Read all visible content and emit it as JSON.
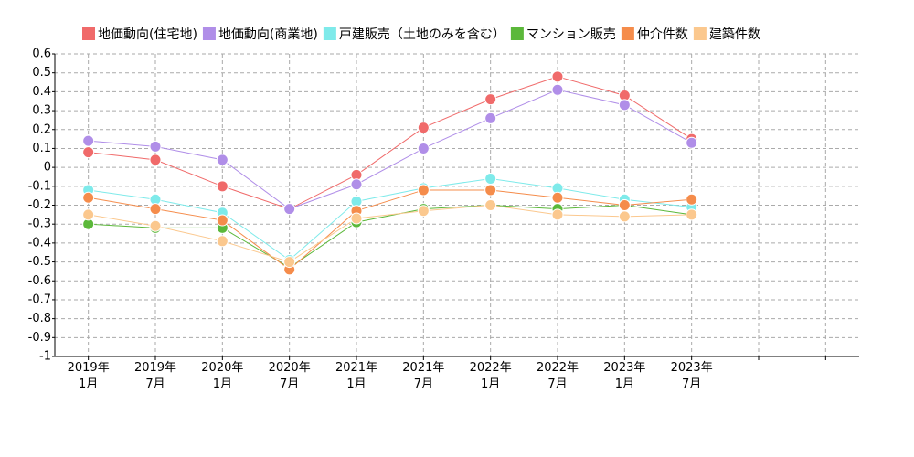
{
  "chart_data": {
    "type": "line",
    "categories": [
      "2019年\n1月",
      "2019年\n7月",
      "2020年\n1月",
      "2020年\n7月",
      "2021年\n1月",
      "2021年\n7月",
      "2022年\n1月",
      "2022年\n7月",
      "2023年\n1月",
      "2023年\n7月",
      null,
      null
    ],
    "series": [
      {
        "name": "地価動向(住宅地)",
        "color": "#f06a6a",
        "values": [
          0.08,
          0.04,
          -0.1,
          -0.22,
          -0.04,
          0.21,
          0.36,
          0.48,
          0.38,
          0.15,
          null,
          null
        ]
      },
      {
        "name": "地価動向(商業地)",
        "color": "#b08ee8",
        "values": [
          0.14,
          0.11,
          0.04,
          -0.22,
          -0.09,
          0.1,
          0.26,
          0.41,
          0.33,
          0.13,
          null,
          null
        ]
      },
      {
        "name": "戸建販売（土地のみを含む）",
        "color": "#7eeaea",
        "values": [
          -0.12,
          -0.17,
          -0.24,
          -0.49,
          -0.18,
          -0.11,
          -0.06,
          -0.11,
          -0.17,
          -0.21,
          null,
          null
        ]
      },
      {
        "name": "マンション販売",
        "color": "#5bb83a",
        "values": [
          -0.3,
          -0.32,
          -0.32,
          -0.53,
          -0.29,
          -0.22,
          -0.2,
          -0.22,
          -0.2,
          -0.25,
          null,
          null
        ]
      },
      {
        "name": "仲介件数",
        "color": "#f58c4b",
        "values": [
          -0.16,
          -0.22,
          -0.28,
          -0.54,
          -0.23,
          -0.12,
          -0.12,
          -0.16,
          -0.2,
          -0.17,
          null,
          null
        ]
      },
      {
        "name": "建築件数",
        "color": "#fbc88e",
        "values": [
          -0.25,
          -0.31,
          -0.39,
          -0.5,
          -0.27,
          -0.23,
          -0.2,
          -0.25,
          -0.26,
          -0.25,
          null,
          null
        ]
      }
    ],
    "ylim": [
      -1,
      0.6
    ],
    "yticks": [
      0.6,
      0.5,
      0.4,
      0.3,
      0.2,
      0.1,
      0,
      -0.1,
      -0.2,
      -0.3,
      -0.4,
      -0.5,
      -0.6,
      -0.7,
      -0.8,
      -0.9,
      -1
    ],
    "grid": true,
    "legend": "top"
  }
}
